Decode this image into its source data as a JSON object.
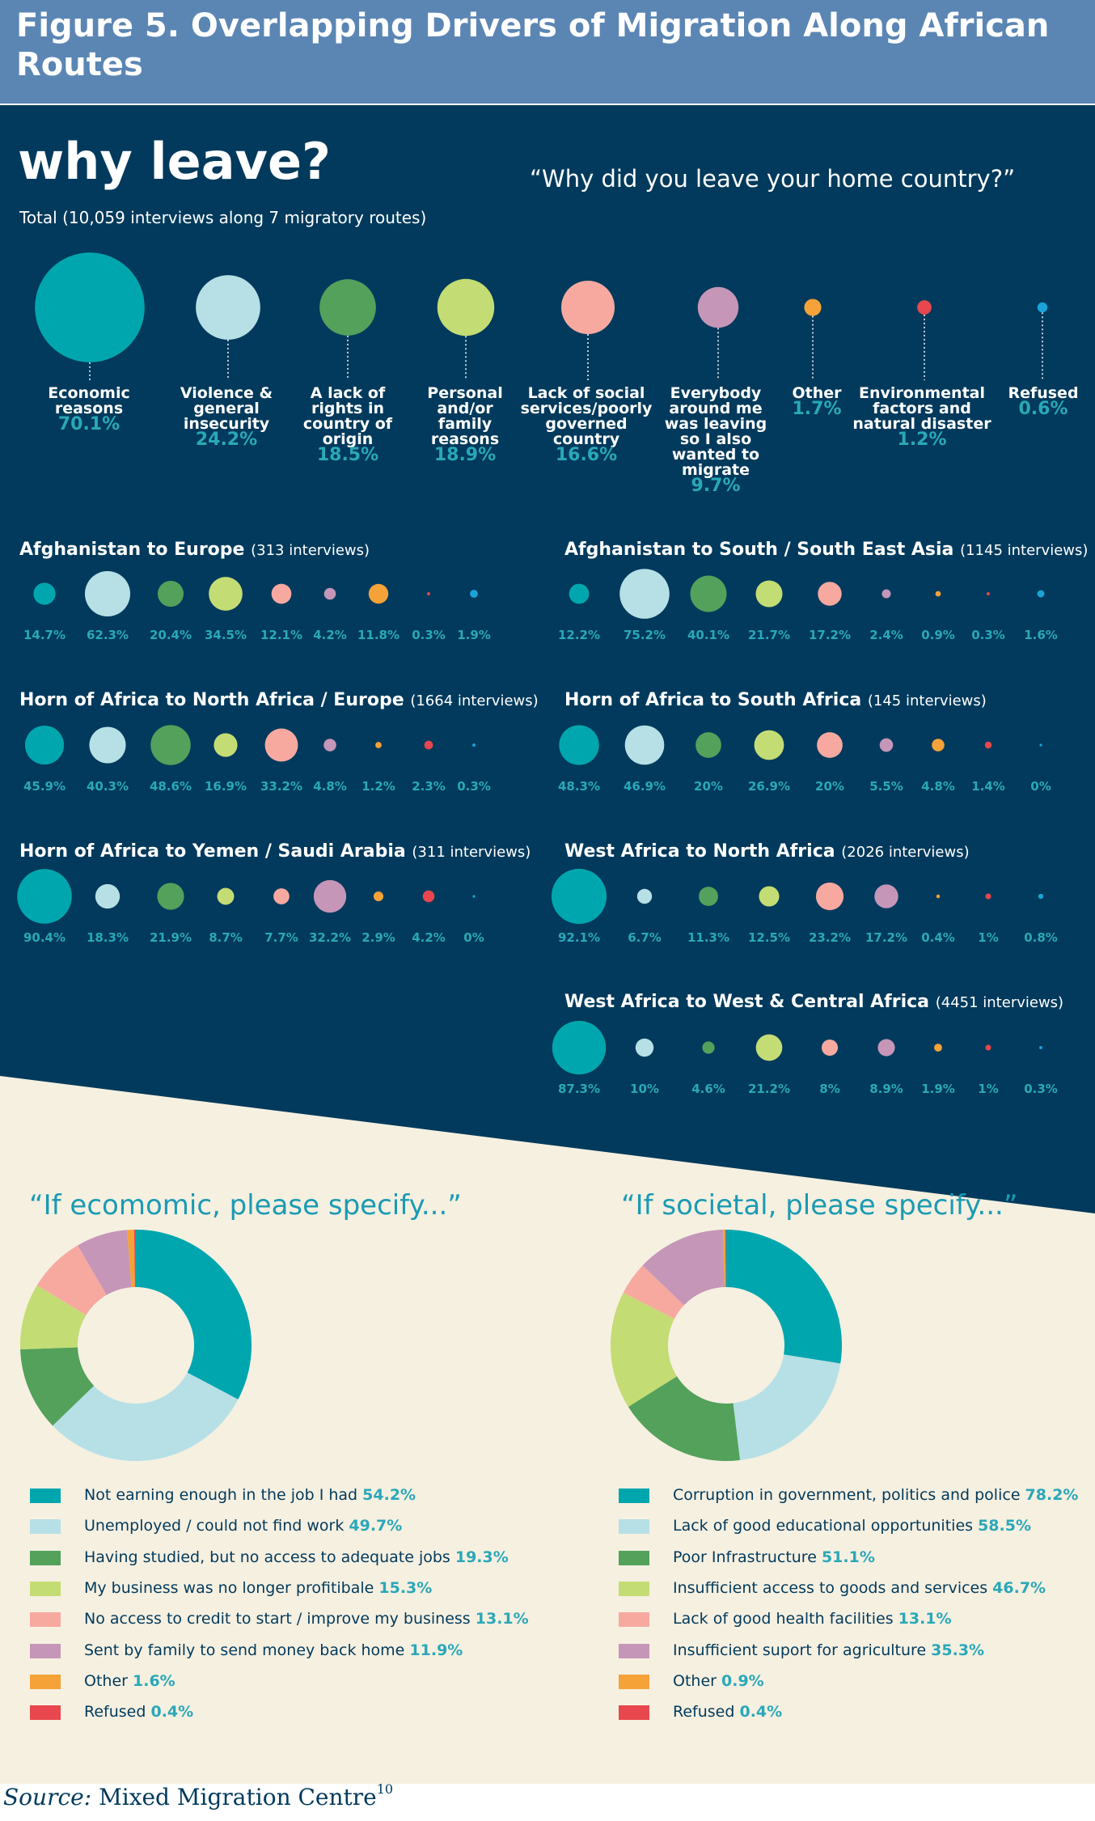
{
  "title": "Figure 5. Overlapping Drivers of Migration Along African Routes",
  "heading": "why leave?",
  "question": "“Why did you leave your home country?”",
  "total_label": "Total (10,059 interviews along 7 migratory routes)",
  "colors": [
    "#00a6ad",
    "#b6e0e6",
    "#53a15b",
    "#c4dc74",
    "#f7a9a0",
    "#c596b8",
    "#f5a238",
    "#e8474e",
    "#1aa3d9"
  ],
  "chart_data": [
    {
      "type": "bubble",
      "name": "Total",
      "categories": [
        "Economic reasons",
        "Violence & general insecurity",
        "A lack of rights in country of origin",
        "Personal and/or family reasons",
        "Lack of social services/poorly governed country",
        "Everybody around me was leaving so I also wanted to migrate",
        "Other",
        "Environmental factors and natural disaster",
        "Refused"
      ],
      "labels": [
        "Economic reasons",
        "Violence & general insecurity",
        "A lack of rights in country of origin",
        "Personal and/or family reasons",
        "Lack of social services/poorly governed country",
        "Everybody around me was leaving so I also wanted to migrate",
        "Other",
        "Environmental factors and natural disaster",
        "Refused"
      ],
      "values": [
        70.1,
        24.2,
        18.5,
        18.9,
        16.6,
        9.7,
        1.7,
        1.2,
        0.6
      ],
      "value_labels": [
        "70.1%",
        "24.2%",
        "18.5%",
        "18.9%",
        "16.6%",
        "9.7%",
        "1.7%",
        "1.2%",
        "0.6%"
      ]
    },
    {
      "type": "bubble",
      "name": "Afghanistan to Europe",
      "note": "(313 interviews)",
      "values": [
        14.7,
        62.3,
        20.4,
        34.5,
        12.1,
        4.2,
        11.8,
        0.3,
        1.9
      ],
      "value_labels": [
        "14.7%",
        "62.3%",
        "20.4%",
        "34.5%",
        "12.1%",
        "4.2%",
        "11.8%",
        "0.3%",
        "1.9%"
      ]
    },
    {
      "type": "bubble",
      "name": "Afghanistan to South / South East Asia",
      "note": "(1145 interviews)",
      "values": [
        12.2,
        75.2,
        40.1,
        21.7,
        17.2,
        2.4,
        0.9,
        0.3,
        1.6
      ],
      "value_labels": [
        "12.2%",
        "75.2%",
        "40.1%",
        "21.7%",
        "17.2%",
        "2.4%",
        "0.9%",
        "0.3%",
        "1.6%"
      ]
    },
    {
      "type": "bubble",
      "name": "Horn of Africa to North Africa / Europe",
      "note": "(1664 interviews)",
      "values": [
        45.9,
        40.3,
        48.6,
        16.9,
        33.2,
        4.8,
        1.2,
        2.3,
        0.3
      ],
      "value_labels": [
        "45.9%",
        "40.3%",
        "48.6%",
        "16.9%",
        "33.2%",
        "4.8%",
        "1.2%",
        "2.3%",
        "0.3%"
      ]
    },
    {
      "type": "bubble",
      "name": "Horn of Africa to South Africa",
      "note": "(145 interviews)",
      "values": [
        48.3,
        46.9,
        20,
        26.9,
        20,
        5.5,
        4.8,
        1.4,
        0
      ],
      "value_labels": [
        "48.3%",
        "46.9%",
        "20%",
        "26.9%",
        "20%",
        "5.5%",
        "4.8%",
        "1.4%",
        "0%"
      ]
    },
    {
      "type": "bubble",
      "name": "Horn of Africa to Yemen / Saudi Arabia",
      "note": "(311 interviews)",
      "values": [
        90.4,
        18.3,
        21.9,
        8.7,
        7.7,
        32.2,
        2.9,
        4.2,
        0
      ],
      "value_labels": [
        "90.4%",
        "18.3%",
        "21.9%",
        "8.7%",
        "7.7%",
        "32.2%",
        "2.9%",
        "4.2%",
        "0%"
      ]
    },
    {
      "type": "bubble",
      "name": "West Africa to North Africa",
      "note": "(2026 interviews)",
      "values": [
        92.1,
        6.7,
        11.3,
        12.5,
        23.2,
        17.2,
        0.4,
        1,
        0.8
      ],
      "value_labels": [
        "92.1%",
        "6.7%",
        "11.3%",
        "12.5%",
        "23.2%",
        "17.2%",
        "0.4%",
        "1%",
        "0.8%"
      ]
    },
    {
      "type": "bubble",
      "name": "West Africa to West & Central Africa",
      "note": "(4451 interviews)",
      "values": [
        87.3,
        10,
        4.6,
        21.2,
        8,
        8.9,
        1.9,
        1,
        0.3
      ],
      "value_labels": [
        "87.3%",
        "10%",
        "4.6%",
        "21.2%",
        "8%",
        "8.9%",
        "1.9%",
        "1%",
        "0.3%"
      ]
    },
    {
      "type": "pie",
      "name": "economic",
      "title": "“If ecomomic, please specify...”",
      "labels": [
        "Not earning enough in the job I had",
        "Unemployed / could not find work",
        "Having studied, but no access to adequate jobs",
        "My business was no longer profitibale",
        "No access to credit to start / improve my business",
        "Sent by family to send money back home",
        "Other",
        "Refused"
      ],
      "values": [
        54.2,
        49.7,
        19.3,
        15.3,
        13.1,
        11.9,
        1.6,
        0.4
      ],
      "value_labels": [
        "54.2%",
        "49.7%",
        "19.3%",
        "15.3%",
        "13.1%",
        "11.9%",
        "1.6%",
        "0.4%"
      ]
    },
    {
      "type": "pie",
      "name": "societal",
      "title": "“If societal, please specify...”",
      "labels": [
        "Corruption in government, politics and police",
        "Lack of good educational opportunities",
        "Poor Infrastructure",
        "Insufficient access to goods and services",
        "Lack of good health facilities",
        "Insufficient suport for agriculture",
        "Other",
        "Refused"
      ],
      "values": [
        78.2,
        58.5,
        51.1,
        46.7,
        13.1,
        35.3,
        0.9,
        0.4
      ],
      "value_labels": [
        "78.2%",
        "58.5%",
        "51.1%",
        "46.7%",
        "13.1%",
        "35.3%",
        "0.9%",
        "0.4%"
      ]
    }
  ],
  "source": {
    "label": "Source:",
    "text": "Mixed Migration Centre",
    "footnote": "10"
  }
}
